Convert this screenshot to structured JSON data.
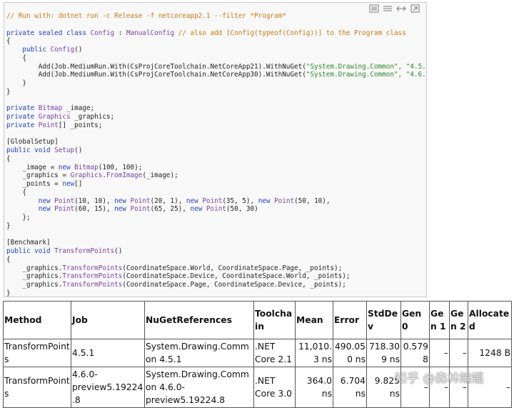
{
  "code": {
    "lines": [
      [
        [
          "// Run with: dotnet run -c Release -f netcoreapp2.1 --filter *Program*",
          "#c47a12"
        ]
      ],
      [],
      [
        [
          "private sealed class ",
          "#1c3fc4"
        ],
        [
          "Config",
          "#7a3fa0"
        ],
        [
          " : ",
          "#222"
        ],
        [
          "ManualConfig",
          "#7a3fa0"
        ],
        [
          " // also add [Config(typeof(Config))] to the Program class",
          "#c47a12"
        ]
      ],
      [
        [
          "{",
          "#222"
        ]
      ],
      [
        [
          "    public ",
          "#1c3fc4"
        ],
        [
          "Config",
          "#7a3fa0"
        ],
        [
          "()",
          "#222"
        ]
      ],
      [
        [
          "    {",
          "#222"
        ]
      ],
      [
        [
          "        Add(Job.MediumRun.With(CsProjCoreToolchain.NetCoreApp21).WithNuGet(",
          "#222"
        ],
        [
          "\"System.Drawing.Common\", \"4.5.",
          "#2a8a2a"
        ]
      ],
      [
        [
          "        Add(Job.MediumRun.With(CsProjCoreToolchain.NetCoreApp30).WithNuGet(",
          "#222"
        ],
        [
          "\"System.Drawing.Common\", \"4.6.",
          "#2a8a2a"
        ]
      ],
      [
        [
          "    }",
          "#222"
        ]
      ],
      [
        [
          "}",
          "#222"
        ]
      ],
      [],
      [
        [
          "private ",
          "#1c3fc4"
        ],
        [
          "Bitmap",
          "#7a3fa0"
        ],
        [
          " _image;",
          "#222"
        ]
      ],
      [
        [
          "private ",
          "#1c3fc4"
        ],
        [
          "Graphics",
          "#7a3fa0"
        ],
        [
          " _graphics;",
          "#222"
        ]
      ],
      [
        [
          "private ",
          "#1c3fc4"
        ],
        [
          "Point",
          "#7a3fa0"
        ],
        [
          "[] _points;",
          "#222"
        ]
      ],
      [],
      [
        [
          "[GlobalSetup]",
          "#222"
        ]
      ],
      [
        [
          "public void ",
          "#1c3fc4"
        ],
        [
          "Setup",
          "#7a3fa0"
        ],
        [
          "()",
          "#222"
        ]
      ],
      [
        [
          "{",
          "#222"
        ]
      ],
      [
        [
          "    _image = ",
          "#222"
        ],
        [
          "new ",
          "#1c3fc4"
        ],
        [
          "Bitmap",
          "#7a3fa0"
        ],
        [
          "(100, 100);",
          "#222"
        ]
      ],
      [
        [
          "    _graphics = ",
          "#222"
        ],
        [
          "Graphics",
          "#7a3fa0"
        ],
        [
          ".",
          "#222"
        ],
        [
          "FromImage",
          "#7a3fa0"
        ],
        [
          "(_image);",
          "#222"
        ]
      ],
      [
        [
          "    _points = ",
          "#222"
        ],
        [
          "new",
          "#1c3fc4"
        ],
        [
          "[]",
          "#222"
        ]
      ],
      [
        [
          "    {",
          "#222"
        ]
      ],
      [
        [
          "        new ",
          "#1c3fc4"
        ],
        [
          "Point",
          "#7a3fa0"
        ],
        [
          "(10, 10), ",
          "#222"
        ],
        [
          "new ",
          "#1c3fc4"
        ],
        [
          "Point",
          "#7a3fa0"
        ],
        [
          "(20, 1), ",
          "#222"
        ],
        [
          "new ",
          "#1c3fc4"
        ],
        [
          "Point",
          "#7a3fa0"
        ],
        [
          "(35, 5), ",
          "#222"
        ],
        [
          "new ",
          "#1c3fc4"
        ],
        [
          "Point",
          "#7a3fa0"
        ],
        [
          "(50, 10),",
          "#222"
        ]
      ],
      [
        [
          "        new ",
          "#1c3fc4"
        ],
        [
          "Point",
          "#7a3fa0"
        ],
        [
          "(60, 15), ",
          "#222"
        ],
        [
          "new ",
          "#1c3fc4"
        ],
        [
          "Point",
          "#7a3fa0"
        ],
        [
          "(65, 25), ",
          "#222"
        ],
        [
          "new ",
          "#1c3fc4"
        ],
        [
          "Point",
          "#7a3fa0"
        ],
        [
          "(50, 30)",
          "#222"
        ]
      ],
      [
        [
          "    };",
          "#222"
        ]
      ],
      [
        [
          "}",
          "#222"
        ]
      ],
      [],
      [
        [
          "[Benchmark]",
          "#222"
        ]
      ],
      [
        [
          "public void ",
          "#1c3fc4"
        ],
        [
          "TransformPoints",
          "#7a3fa0"
        ],
        [
          "()",
          "#222"
        ]
      ],
      [
        [
          "{",
          "#222"
        ]
      ],
      [
        [
          "    _graphics.",
          "#222"
        ],
        [
          "TransformPoints",
          "#7a3fa0"
        ],
        [
          "(CoordinateSpace.World, CoordinateSpace.Page, _points);",
          "#222"
        ]
      ],
      [
        [
          "    _graphics.",
          "#222"
        ],
        [
          "TransformPoints",
          "#7a3fa0"
        ],
        [
          "(CoordinateSpace.Device, CoordinateSpace.World, _points);",
          "#222"
        ]
      ],
      [
        [
          "    _graphics.",
          "#222"
        ],
        [
          "TransformPoints",
          "#7a3fa0"
        ],
        [
          "(CoordinateSpace.Page, CoordinateSpace.Device, _points);",
          "#222"
        ]
      ],
      [
        [
          "}",
          "#222"
        ]
      ]
    ]
  },
  "table": {
    "header": [
      "Method",
      "Job",
      "NuGetReferences",
      "Toolchain",
      "Mean",
      "Error",
      "StdDev",
      "Gen 0",
      "Gen 1",
      "Gen 2",
      "Allocated"
    ],
    "rows": [
      [
        "TransformPoints",
        "4.5.1",
        "System.Drawing.Common 4.5.1",
        ".NET Core 2.1",
        "11,010.3 ns",
        "490.050 ns",
        "718.309 ns",
        "0.5798",
        "–",
        "–",
        "1248 B"
      ],
      [
        "TransformPoints",
        "4.6.0-preview5.19224.8",
        "System.Drawing.Common 4.6.0-preview5.19224.8",
        ".NET Core 3.0",
        "364.0 ns",
        "6.704 ns",
        "9.825 ns",
        "–",
        "–",
        "–",
        "–"
      ]
    ]
  },
  "watermark": "知乎 @森林蝙蝠"
}
